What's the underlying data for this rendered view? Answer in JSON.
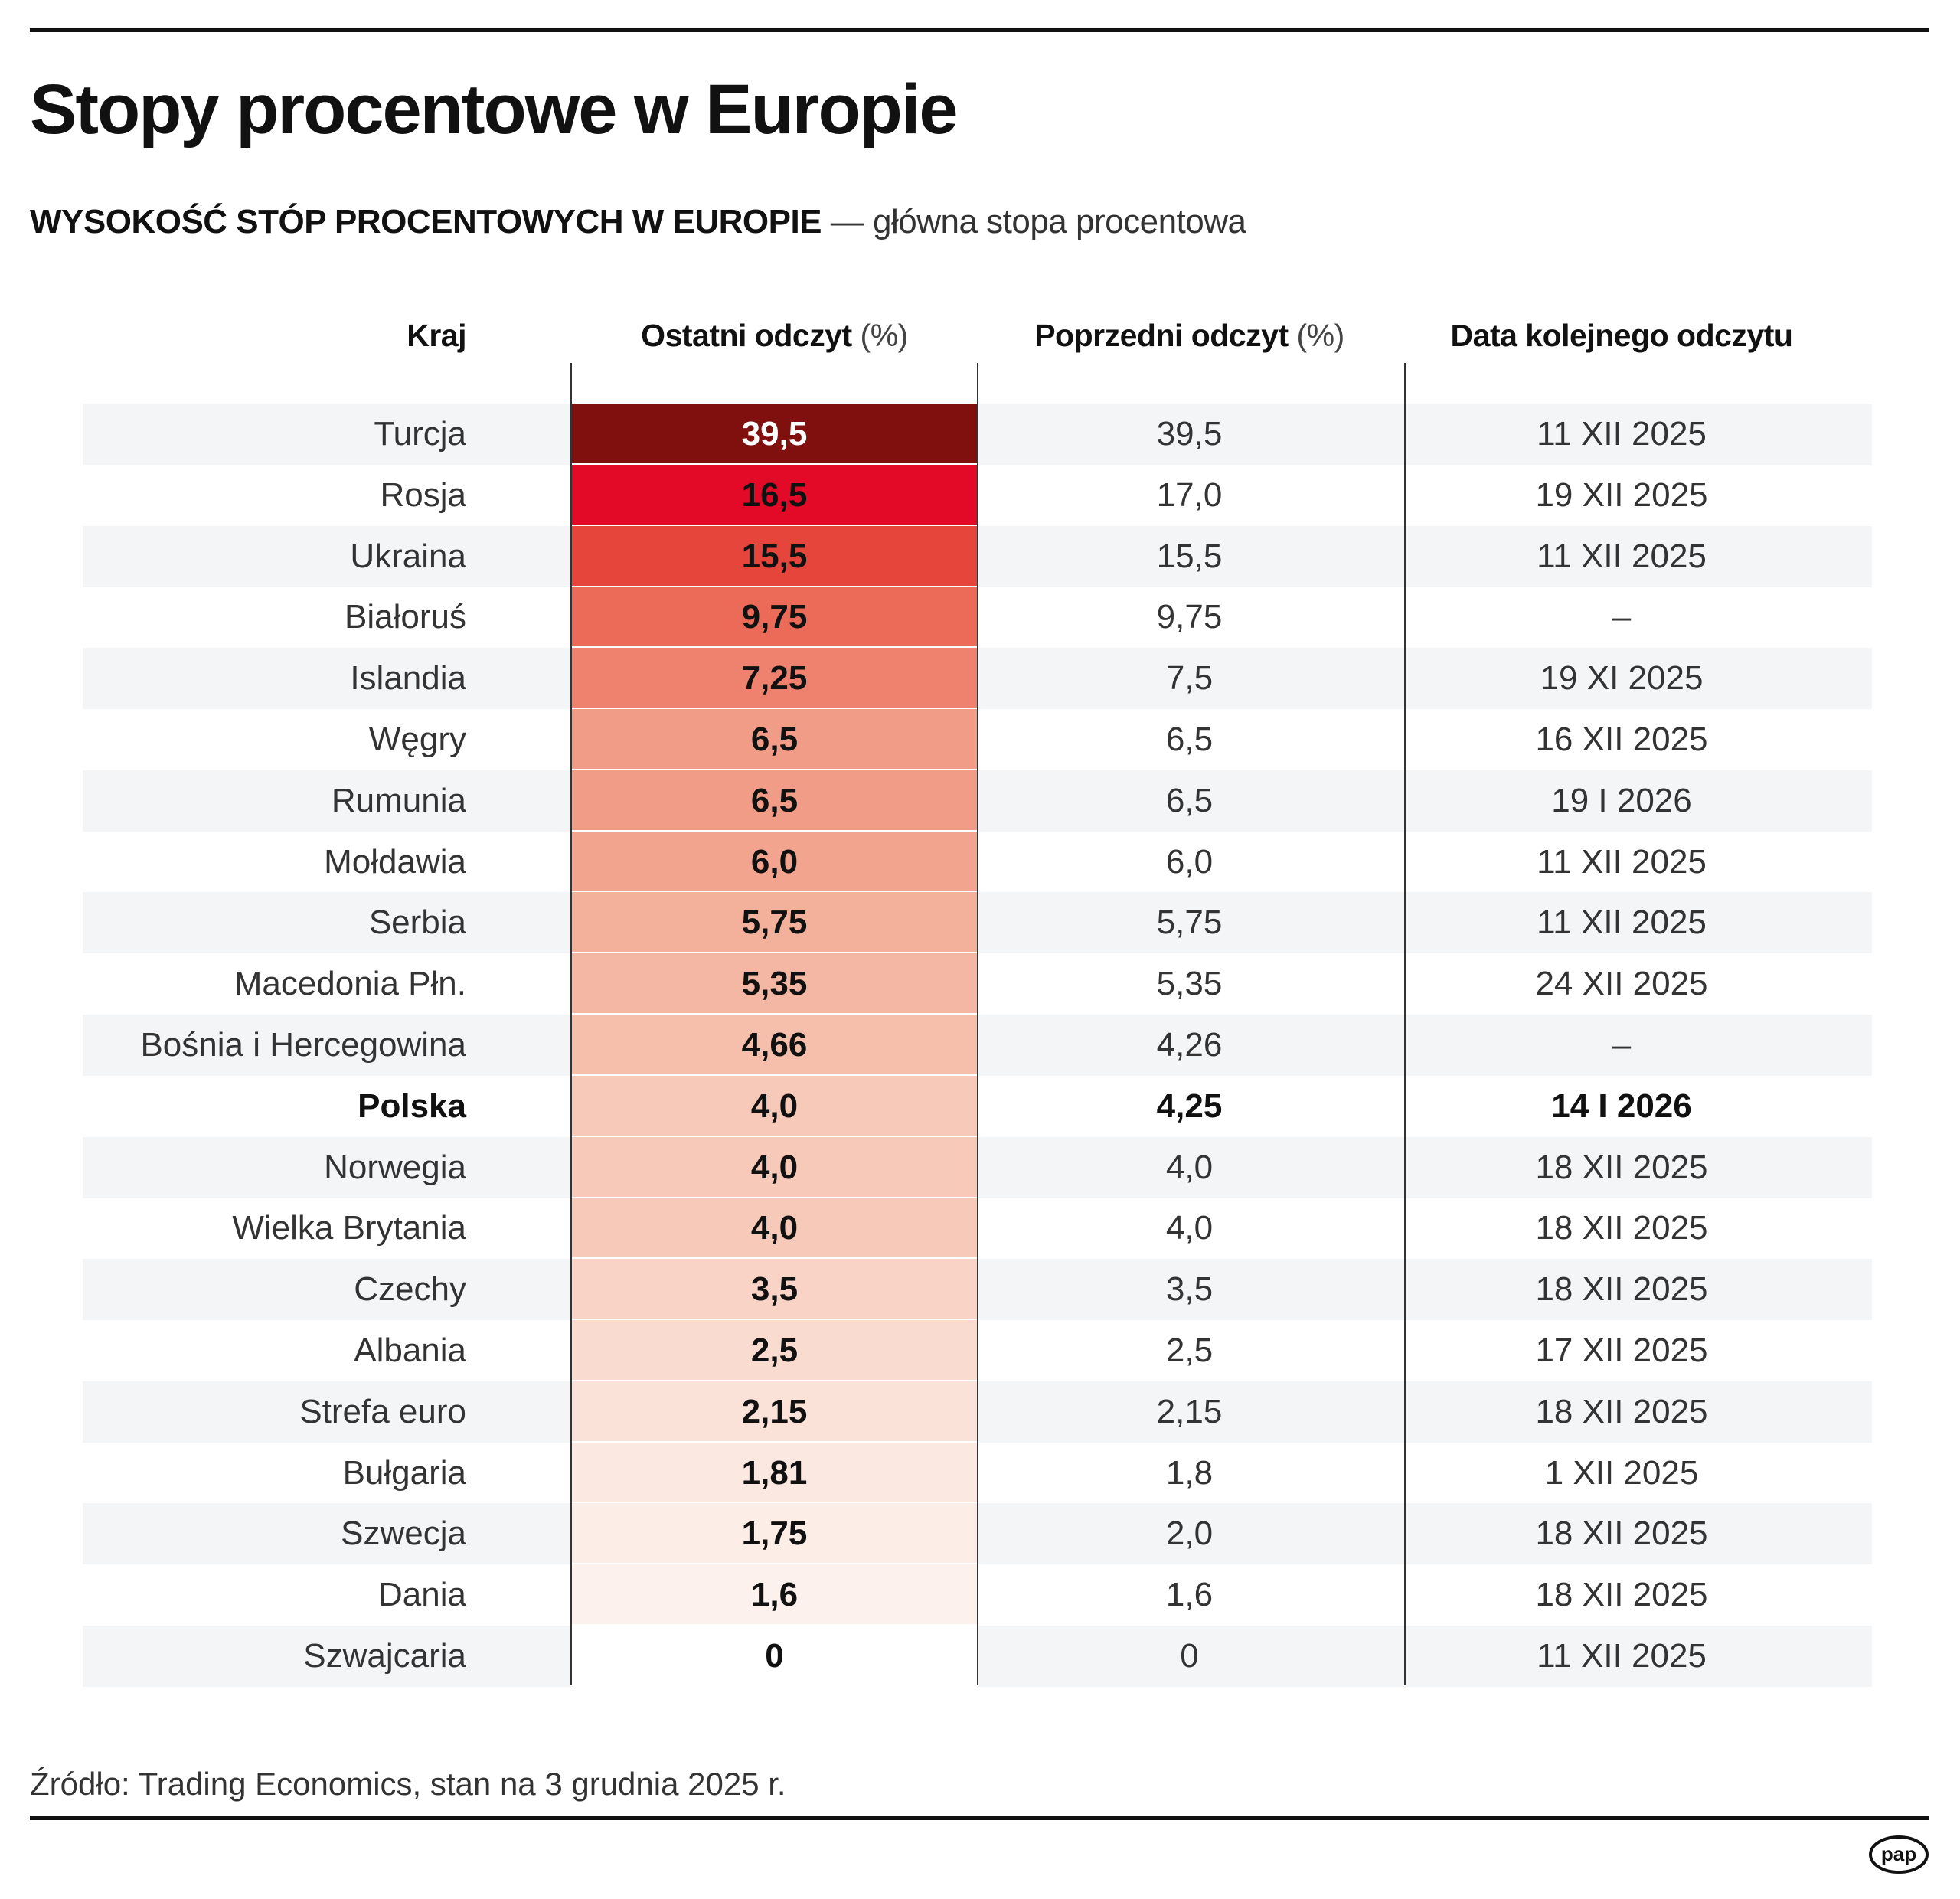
{
  "title": "Stopy procentowe w Europie",
  "subtitle": {
    "bold": "WYSOKOŚĆ STÓP PROCENTOWYCH W EUROPIE",
    "light": " — główna stopa procentowa"
  },
  "headers": {
    "country": "Kraj",
    "current": "Ostatni odczyt",
    "current_unit": " (%)",
    "previous": "Poprzedni odczyt",
    "previous_unit": " (%)",
    "next_date": "Data kolejnego odczytu"
  },
  "rows": [
    {
      "country": "Turcja",
      "current": "39,5",
      "previous": "39,5",
      "next": "11 XII 2025",
      "color": "#7f100d"
    },
    {
      "country": "Rosja",
      "current": "16,5",
      "previous": "17,0",
      "next": "19 XII 2025",
      "color": "#e30a27"
    },
    {
      "country": "Ukraina",
      "current": "15,5",
      "previous": "15,5",
      "next": "11 XII 2025",
      "color": "#e6453c"
    },
    {
      "country": "Białoruś",
      "current": "9,75",
      "previous": "9,75",
      "next": "–",
      "color": "#eb6a58"
    },
    {
      "country": "Islandia",
      "current": "7,25",
      "previous": "7,5",
      "next": "19 XI 2025",
      "color": "#ee826f"
    },
    {
      "country": "Węgry",
      "current": "6,5",
      "previous": "6,5",
      "next": "16 XII 2025",
      "color": "#f19c86"
    },
    {
      "country": "Rumunia",
      "current": "6,5",
      "previous": "6,5",
      "next": "19 I 2026",
      "color": "#f19c86"
    },
    {
      "country": "Mołdawia",
      "current": "6,0",
      "previous": "6,0",
      "next": "11 XII 2025",
      "color": "#f2a48f"
    },
    {
      "country": "Serbia",
      "current": "5,75",
      "previous": "5,75",
      "next": "11 XII 2025",
      "color": "#f3b09b"
    },
    {
      "country": "Macedonia Płn.",
      "current": "5,35",
      "previous": "5,35",
      "next": "24 XII 2025",
      "color": "#f4b7a3"
    },
    {
      "country": "Bośnia i Hercegowina",
      "current": "4,66",
      "previous": "4,26",
      "next": "–",
      "color": "#f5bfac"
    },
    {
      "country": "Polska",
      "current": "4,0",
      "previous": "4,25",
      "next": "14 I 2026",
      "color": "#f7c9b8",
      "highlight": true
    },
    {
      "country": "Norwegia",
      "current": "4,0",
      "previous": "4,0",
      "next": "18 XII 2025",
      "color": "#f7c9b8"
    },
    {
      "country": "Wielka Brytania",
      "current": "4,0",
      "previous": "4,0",
      "next": "18 XII 2025",
      "color": "#f7c9b8"
    },
    {
      "country": "Czechy",
      "current": "3,5",
      "previous": "3,5",
      "next": "18 XII 2025",
      "color": "#f8d3c6"
    },
    {
      "country": "Albania",
      "current": "2,5",
      "previous": "2,5",
      "next": "17 XII 2025",
      "color": "#f9dbd0"
    },
    {
      "country": "Strefa euro",
      "current": "2,15",
      "previous": "2,15",
      "next": "18 XII 2025",
      "color": "#fae2d9"
    },
    {
      "country": "Bułgaria",
      "current": "1,81",
      "previous": "1,8",
      "next": "1 XII 2025",
      "color": "#fbe8e1"
    },
    {
      "country": "Szwecja",
      "current": "1,75",
      "previous": "2,0",
      "next": "18 XII 2025",
      "color": "#fcede7"
    },
    {
      "country": "Dania",
      "current": "1,6",
      "previous": "1,6",
      "next": "18 XII 2025",
      "color": "#fdf1ed"
    },
    {
      "country": "Szwajcaria",
      "current": "0",
      "previous": "0",
      "next": "11 XII 2025",
      "color": "#ffffff"
    }
  ],
  "source": "Źródło: Trading Economics, stan na 3 grudnia 2025 r.",
  "logo": "pap",
  "colors": {
    "band": "#f4f5f7",
    "max": "#7f100d",
    "accent": "#e30a27"
  }
}
